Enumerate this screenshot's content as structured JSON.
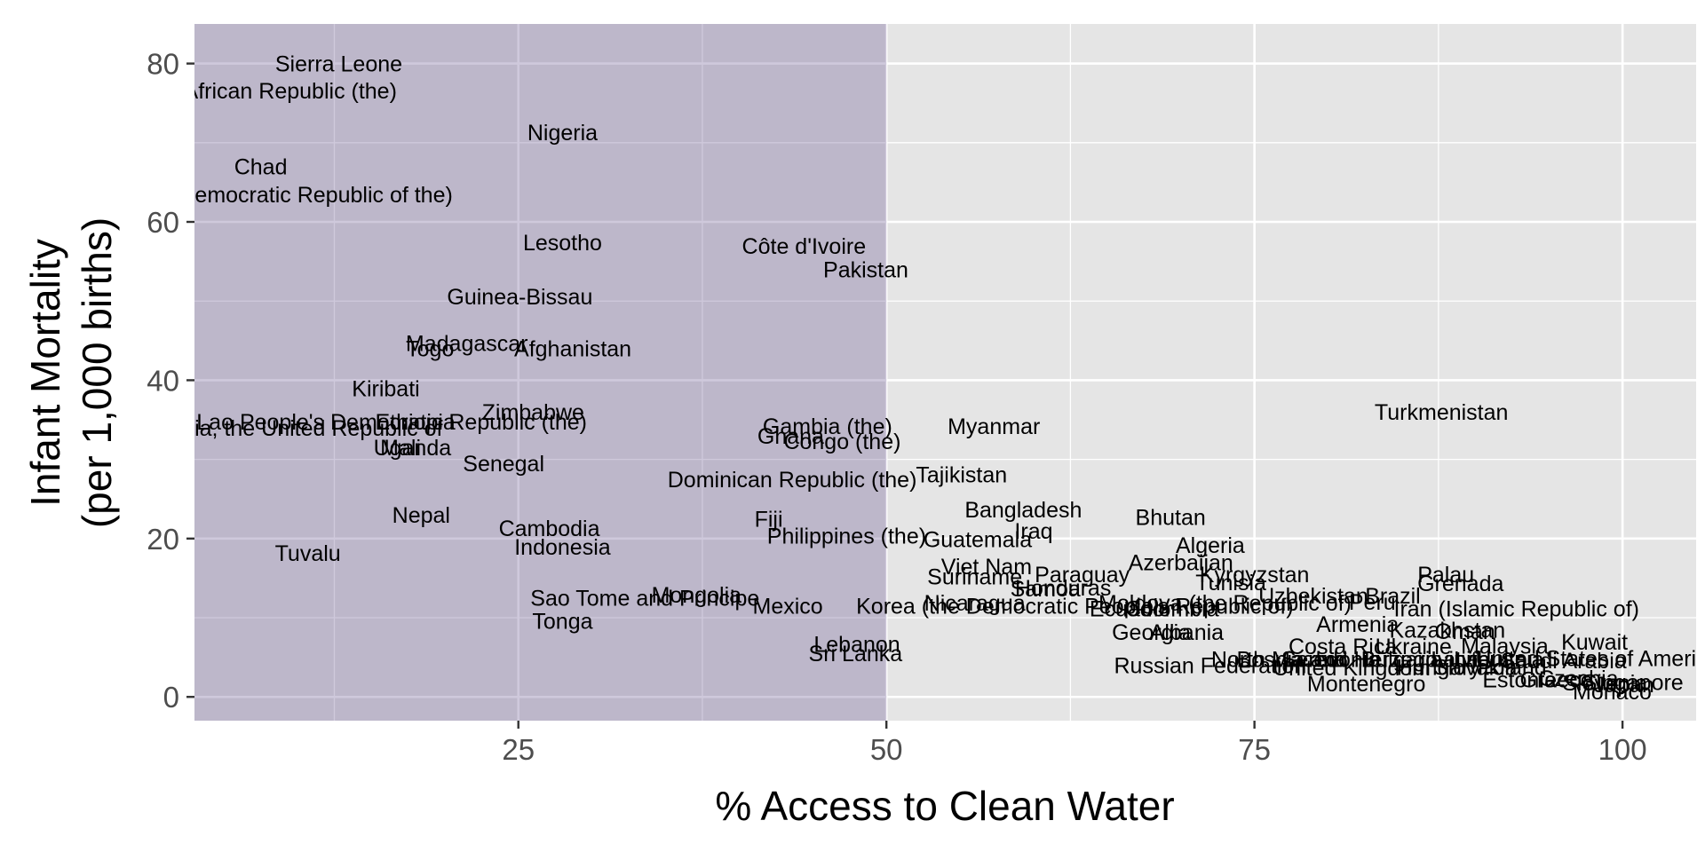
{
  "chart_data": {
    "type": "scatter",
    "marker": "text-label",
    "title": "",
    "xlabel": "% Access to Clean Water",
    "ylabel_lines": [
      "Infant Mortality",
      "(per 1,000 births)"
    ],
    "xlim": [
      3,
      105
    ],
    "ylim": [
      -3,
      85
    ],
    "xticks": [
      25,
      50,
      75,
      100
    ],
    "yticks": [
      0,
      20,
      40,
      60,
      80
    ],
    "grid": true,
    "legend": "none",
    "highlight": {
      "x_from": 3,
      "x_to": 50,
      "color": "#6e5a96",
      "opacity": 0.33
    },
    "colors": {
      "panel": "#e5e5e5",
      "gridline": "#ffffff",
      "highlight": "#6e5a96",
      "tick_text": "#4d4d4d",
      "label_text": "#000000"
    },
    "points": [
      {
        "label": "Sierra Leone",
        "x": 12.8,
        "y": 80.0
      },
      {
        "label": "Central African Republic (the)",
        "x": 6.9,
        "y": 76.6
      },
      {
        "label": "Nigeria",
        "x": 28.0,
        "y": 71.3
      },
      {
        "label": "Chad",
        "x": 7.5,
        "y": 67.0
      },
      {
        "label": "Congo (the Democratic Republic of the)",
        "x": 7.3,
        "y": 63.5
      },
      {
        "label": "Lesotho",
        "x": 28.0,
        "y": 57.4
      },
      {
        "label": "Côte d'Ivoire",
        "x": 44.4,
        "y": 57.0
      },
      {
        "label": "Pakistan",
        "x": 48.6,
        "y": 54.0
      },
      {
        "label": "Guinea-Bissau",
        "x": 25.1,
        "y": 50.6
      },
      {
        "label": "Madagascar",
        "x": 21.5,
        "y": 44.7
      },
      {
        "label": "Togo",
        "x": 19.0,
        "y": 44.0
      },
      {
        "label": "Afghanistan",
        "x": 28.7,
        "y": 44.0
      },
      {
        "label": "Kiribati",
        "x": 16.0,
        "y": 39.0
      },
      {
        "label": "Zimbabwe",
        "x": 26.0,
        "y": 36.0
      },
      {
        "label": "Lao People's Democratic Republic (the)",
        "x": 16.4,
        "y": 34.8
      },
      {
        "label": "Ethiopia",
        "x": 18.0,
        "y": 34.8
      },
      {
        "label": "Tanzania, the United Republic of",
        "x": 9.0,
        "y": 34.0
      },
      {
        "label": "Gambia (the)",
        "x": 46.0,
        "y": 34.2
      },
      {
        "label": "Myanmar",
        "x": 57.3,
        "y": 34.2
      },
      {
        "label": "Turkmenistan",
        "x": 87.7,
        "y": 36.0
      },
      {
        "label": "Ghana",
        "x": 43.5,
        "y": 33.0
      },
      {
        "label": "Congo (the)",
        "x": 47.0,
        "y": 32.3
      },
      {
        "label": "Mali",
        "x": 17.0,
        "y": 31.5
      },
      {
        "label": "Uganda",
        "x": 17.8,
        "y": 31.5
      },
      {
        "label": "Senegal",
        "x": 24.0,
        "y": 29.5
      },
      {
        "label": "Dominican Republic (the)",
        "x": 43.6,
        "y": 27.5
      },
      {
        "label": "Tajikistan",
        "x": 55.1,
        "y": 28.1
      },
      {
        "label": "Nepal",
        "x": 18.4,
        "y": 23.0
      },
      {
        "label": "Bangladesh",
        "x": 59.3,
        "y": 23.7
      },
      {
        "label": "Bhutan",
        "x": 69.3,
        "y": 22.7
      },
      {
        "label": "Fiji",
        "x": 42.0,
        "y": 22.5
      },
      {
        "label": "Cambodia",
        "x": 27.1,
        "y": 21.3
      },
      {
        "label": "Iraq",
        "x": 60.0,
        "y": 21.0
      },
      {
        "label": "Philippines (the)",
        "x": 47.3,
        "y": 20.4
      },
      {
        "label": "Guatemala",
        "x": 56.2,
        "y": 19.9
      },
      {
        "label": "Algeria",
        "x": 72.0,
        "y": 19.2
      },
      {
        "label": "Indonesia",
        "x": 28.0,
        "y": 19.0
      },
      {
        "label": "Tuvalu",
        "x": 10.7,
        "y": 18.2
      },
      {
        "label": "Azerbaijan",
        "x": 70.0,
        "y": 17.0
      },
      {
        "label": "Viet Nam",
        "x": 56.8,
        "y": 16.5
      },
      {
        "label": "Kyrgyzstan",
        "x": 75.0,
        "y": 15.5
      },
      {
        "label": "Palau",
        "x": 88.0,
        "y": 15.5
      },
      {
        "label": "Paraguay",
        "x": 63.3,
        "y": 15.5
      },
      {
        "label": "Suriname",
        "x": 56.0,
        "y": 15.2
      },
      {
        "label": "Tunisia",
        "x": 73.4,
        "y": 14.5
      },
      {
        "label": "Grenada",
        "x": 89.0,
        "y": 14.4
      },
      {
        "label": "Honduras",
        "x": 62.0,
        "y": 13.8
      },
      {
        "label": "Samoa",
        "x": 60.8,
        "y": 13.7
      },
      {
        "label": "Uzbekistan",
        "x": 79.0,
        "y": 12.8
      },
      {
        "label": "Brazil",
        "x": 84.4,
        "y": 12.8
      },
      {
        "label": "Sao Tome and Principe",
        "x": 33.6,
        "y": 12.5
      },
      {
        "label": "Mongolia",
        "x": 37.1,
        "y": 12.9
      },
      {
        "label": "Peru",
        "x": 83.0,
        "y": 12.0
      },
      {
        "label": "Mexico",
        "x": 43.3,
        "y": 11.5
      },
      {
        "label": "Moldova (the Republic of)",
        "x": 73.0,
        "y": 11.9
      },
      {
        "label": "Nicaragua",
        "x": 56.0,
        "y": 11.9
      },
      {
        "label": "Korea (the Democratic People's Republic of)",
        "x": 62.8,
        "y": 11.5
      },
      {
        "label": "Ecuador",
        "x": 66.6,
        "y": 11.2
      },
      {
        "label": "Colombia",
        "x": 69.4,
        "y": 11.2
      },
      {
        "label": "Iran (Islamic Republic of)",
        "x": 92.8,
        "y": 11.2
      },
      {
        "label": "Tonga",
        "x": 28.0,
        "y": 9.6
      },
      {
        "label": "Armenia",
        "x": 82.0,
        "y": 9.2
      },
      {
        "label": "Kazakhstan",
        "x": 88.1,
        "y": 8.5
      },
      {
        "label": "Oman",
        "x": 89.3,
        "y": 8.3
      },
      {
        "label": "Georgia",
        "x": 68.0,
        "y": 8.2
      },
      {
        "label": "Albania",
        "x": 70.4,
        "y": 8.2
      },
      {
        "label": "Kuwait",
        "x": 98.1,
        "y": 7.0
      },
      {
        "label": "Lebanon",
        "x": 48.0,
        "y": 6.7
      },
      {
        "label": "Costa Rica",
        "x": 81.0,
        "y": 6.4
      },
      {
        "label": "Ukraine",
        "x": 85.8,
        "y": 6.4
      },
      {
        "label": "Malaysia",
        "x": 92.0,
        "y": 6.5
      },
      {
        "label": "Sri Lanka",
        "x": 47.9,
        "y": 5.5
      },
      {
        "label": "North Macedonia",
        "x": 77.8,
        "y": 4.8
      },
      {
        "label": "Bosnia and Herzegovina",
        "x": 82.0,
        "y": 4.8
      },
      {
        "label": "Serbia",
        "x": 79.0,
        "y": 4.8
      },
      {
        "label": "Bulgaria",
        "x": 85.0,
        "y": 4.8
      },
      {
        "label": "Latvia",
        "x": 89.0,
        "y": 4.8
      },
      {
        "label": "Lithuania",
        "x": 91.6,
        "y": 4.8
      },
      {
        "label": "Saudi Arabia",
        "x": 96.0,
        "y": 4.6
      },
      {
        "label": "United States of America",
        "x": 98.3,
        "y": 4.9
      },
      {
        "label": "Russian Federation",
        "x": 72.0,
        "y": 4.0
      },
      {
        "label": "United Kingdom",
        "x": 81.6,
        "y": 3.7
      },
      {
        "label": "Hungary",
        "x": 87.5,
        "y": 3.8
      },
      {
        "label": "Slovakia",
        "x": 90.0,
        "y": 3.8
      },
      {
        "label": "Poland",
        "x": 92.5,
        "y": 3.8
      },
      {
        "label": "Montenegro",
        "x": 82.6,
        "y": 1.7
      },
      {
        "label": "Estonia",
        "x": 93.0,
        "y": 2.2
      },
      {
        "label": "Greece",
        "x": 95.5,
        "y": 2.2
      },
      {
        "label": "Czechia",
        "x": 97.0,
        "y": 2.4
      },
      {
        "label": "Slovenia",
        "x": 98.8,
        "y": 1.8
      },
      {
        "label": "Japan",
        "x": 100.1,
        "y": 1.6
      },
      {
        "label": "Singapore",
        "x": 100.7,
        "y": 1.9
      },
      {
        "label": "Monaco",
        "x": 99.3,
        "y": 0.7
      }
    ]
  }
}
